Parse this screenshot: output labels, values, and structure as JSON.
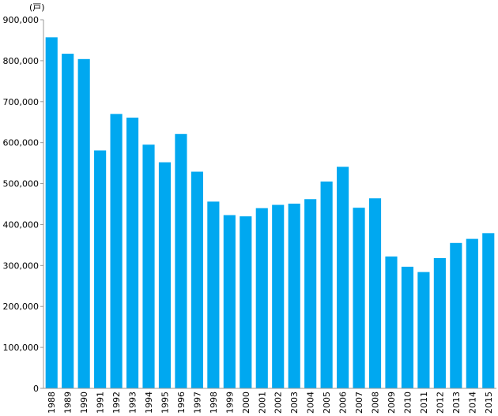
{
  "chart_data": {
    "type": "bar",
    "unit_label": "(戸)",
    "categories": [
      "1988",
      "1989",
      "1990",
      "1991",
      "1992",
      "1993",
      "1994",
      "1995",
      "1996",
      "1997",
      "1998",
      "1999",
      "2000",
      "2001",
      "2002",
      "2003",
      "2004",
      "2005",
      "2006",
      "2007",
      "2008",
      "2009",
      "2010",
      "2011",
      "2012",
      "2013",
      "2014",
      "2015"
    ],
    "values": [
      857000,
      817000,
      804000,
      581000,
      670000,
      661000,
      595000,
      552000,
      621000,
      529000,
      456000,
      423000,
      420000,
      440000,
      448000,
      451000,
      462000,
      505000,
      541000,
      441000,
      464000,
      322000,
      297000,
      284000,
      318000,
      355000,
      365000,
      379000
    ],
    "ylim": [
      0,
      900000
    ],
    "yticks": [
      0,
      100000,
      200000,
      300000,
      400000,
      500000,
      600000,
      700000,
      800000,
      900000
    ],
    "ytick_labels": [
      "0",
      "100,000",
      "200,000",
      "300,000",
      "400,000",
      "500,000",
      "600,000",
      "700,000",
      "800,000",
      "900,000"
    ],
    "grid": false,
    "colors": {
      "bar": "#00a8f0",
      "axis": "#999999"
    }
  }
}
